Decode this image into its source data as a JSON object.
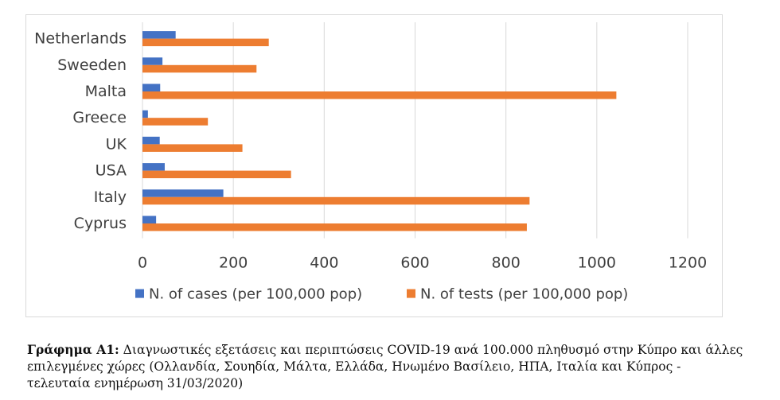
{
  "chart_data": {
    "type": "bar",
    "orientation": "horizontal",
    "categories": [
      "Netherlands",
      "Sweeden",
      "Malta",
      "Greece",
      "UK",
      "USA",
      "Italy",
      "Cyprus"
    ],
    "series": [
      {
        "name": "N. of cases (per 100,000 pop)",
        "color": "#4472c4",
        "values": [
          73,
          44,
          39,
          12,
          38,
          49,
          178,
          30
        ]
      },
      {
        "name": "N. of tests (per 100,000 pop)",
        "color": "#ed7d31",
        "values": [
          278,
          251,
          1043,
          144,
          220,
          327,
          852,
          846
        ]
      }
    ],
    "xlim": [
      0,
      1200
    ],
    "xticks": [
      "0",
      "200",
      "400",
      "600",
      "800",
      "1000",
      "1200"
    ],
    "grid": "vertical",
    "legend_position": "bottom"
  },
  "caption": {
    "label": "Γράφημα Α1:",
    "text": " Διαγνωστικές εξετάσεις και περιπτώσεις COVID-19 ανά 100.000 πληθυσμό στην Κύπρο και άλλες επιλεγμένες χώρες (Ολλανδία, Σουηδία, Μάλτα, Ελλάδα, Ηνωμένο Βασίλειο, ΗΠΑ, Ιταλία και Κύπρος - τελευταία ενημέρωση 31/03/2020)"
  }
}
